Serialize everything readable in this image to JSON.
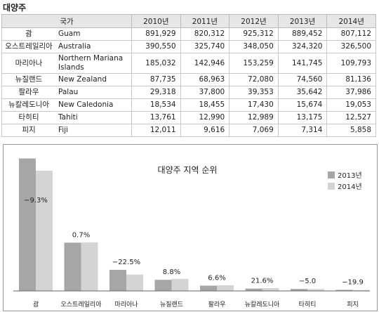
{
  "section_title": "대양주",
  "table": {
    "headers": [
      "국가",
      "2010년",
      "2011년",
      "2012년",
      "2013년",
      "2014년"
    ],
    "rows": [
      {
        "ko": "괌",
        "en": "Guam",
        "values": [
          "891,929",
          "820,312",
          "925,312",
          "889,452",
          "807,112"
        ]
      },
      {
        "ko": "오스트레일리아",
        "en": "Australia",
        "values": [
          "390,550",
          "325,740",
          "348,050",
          "324,320",
          "326,500"
        ]
      },
      {
        "ko": "마리아나",
        "en": "Northern Mariana Islands",
        "values": [
          "185,032",
          "142,946",
          "153,259",
          "141,745",
          "109,793"
        ]
      },
      {
        "ko": "뉴질랜드",
        "en": "New Zealand",
        "values": [
          "87,735",
          "68,963",
          "72,080",
          "74,560",
          "81,136"
        ]
      },
      {
        "ko": "팔라우",
        "en": "Palau",
        "values": [
          "29,318",
          "37,800",
          "39,353",
          "35,642",
          "37,986"
        ]
      },
      {
        "ko": "뉴칼레도니아",
        "en": "New Caledonia",
        "values": [
          "18,534",
          "18,455",
          "17,430",
          "15,674",
          "19,053"
        ]
      },
      {
        "ko": "타히티",
        "en": "Tahiti",
        "values": [
          "13,761",
          "12,990",
          "12,989",
          "13,175",
          "12,527"
        ]
      },
      {
        "ko": "피지",
        "en": "Fiji",
        "values": [
          "12,011",
          "9,616",
          "7,069",
          "7,314",
          "5,858"
        ]
      }
    ]
  },
  "chart_data": {
    "type": "bar",
    "title": "대양주 지역 순위",
    "categories": [
      "괌",
      "오스트레일리아",
      "마리아나",
      "뉴질랜드",
      "팔라우",
      "뉴칼레도니아",
      "타히티",
      "피지"
    ],
    "series": [
      {
        "name": "2013년",
        "color": "#a6a6a6",
        "values": [
          889452,
          324320,
          141745,
          74560,
          35642,
          15674,
          13175,
          7314
        ]
      },
      {
        "name": "2014년",
        "color": "#d4d4d4",
        "values": [
          807112,
          326500,
          109793,
          81136,
          37986,
          19053,
          12527,
          5858
        ]
      }
    ],
    "annotations": [
      "−9.3%",
      "0.7%",
      "−22.5%",
      "8.8%",
      "6.6%",
      "21.6%",
      "−5.0",
      "−19.9"
    ],
    "legend_position": "top-right",
    "grid": false
  }
}
